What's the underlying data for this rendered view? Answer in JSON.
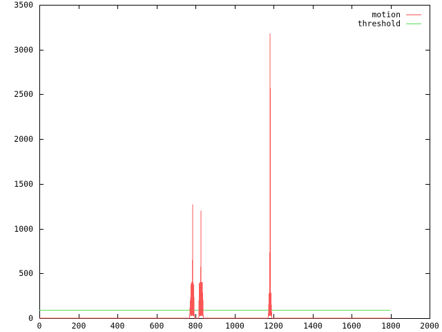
{
  "window": {
    "background": "#ffffff",
    "border_color": "#000000",
    "text_color": "#000000"
  },
  "chart_data": {
    "type": "line",
    "title": "",
    "xlabel": "",
    "ylabel": "",
    "xlim": [
      0,
      2000
    ],
    "ylim": [
      0,
      3500
    ],
    "xticks": [
      0,
      200,
      400,
      600,
      800,
      1000,
      1200,
      1400,
      1600,
      1800,
      2000
    ],
    "yticks": [
      0,
      500,
      1000,
      1500,
      2000,
      2500,
      3000,
      3500
    ],
    "grid": false,
    "legend_position": "top-right",
    "legend": [
      {
        "label": "motion",
        "color": "#fa5555"
      },
      {
        "label": "threshold",
        "color": "#55e055"
      }
    ],
    "series": [
      {
        "name": "threshold",
        "color": "#55e055",
        "points": [
          [
            0,
            90
          ],
          [
            1800,
            90
          ]
        ]
      },
      {
        "name": "motion",
        "color": "#fa5555",
        "points": [
          [
            0,
            0
          ],
          [
            770,
            0
          ],
          [
            775,
            230
          ],
          [
            776,
            25
          ],
          [
            778,
            390
          ],
          [
            779,
            30
          ],
          [
            780,
            400
          ],
          [
            781,
            25
          ],
          [
            783,
            385
          ],
          [
            784,
            30
          ],
          [
            786,
            1270
          ],
          [
            787,
            25
          ],
          [
            788,
            400
          ],
          [
            789,
            30
          ],
          [
            791,
            380
          ],
          [
            792,
            25
          ],
          [
            793,
            230
          ],
          [
            794,
            0
          ],
          [
            817,
            0
          ],
          [
            818,
            200
          ],
          [
            819,
            30
          ],
          [
            820,
            390
          ],
          [
            821,
            25
          ],
          [
            823,
            400
          ],
          [
            824,
            30
          ],
          [
            826,
            385
          ],
          [
            827,
            25
          ],
          [
            828,
            1200
          ],
          [
            829,
            30
          ],
          [
            831,
            400
          ],
          [
            832,
            25
          ],
          [
            834,
            390
          ],
          [
            835,
            30
          ],
          [
            836,
            400
          ],
          [
            837,
            25
          ],
          [
            839,
            200
          ],
          [
            840,
            0
          ],
          [
            1174,
            0
          ],
          [
            1175,
            150
          ],
          [
            1176,
            25
          ],
          [
            1177,
            280
          ],
          [
            1178,
            30
          ],
          [
            1180,
            300
          ],
          [
            1181,
            25
          ],
          [
            1183,
            3180
          ],
          [
            1184,
            30
          ],
          [
            1186,
            295
          ],
          [
            1187,
            25
          ],
          [
            1188,
            280
          ],
          [
            1189,
            30
          ],
          [
            1190,
            100
          ],
          [
            1191,
            0
          ],
          [
            1800,
            0
          ]
        ]
      }
    ]
  }
}
